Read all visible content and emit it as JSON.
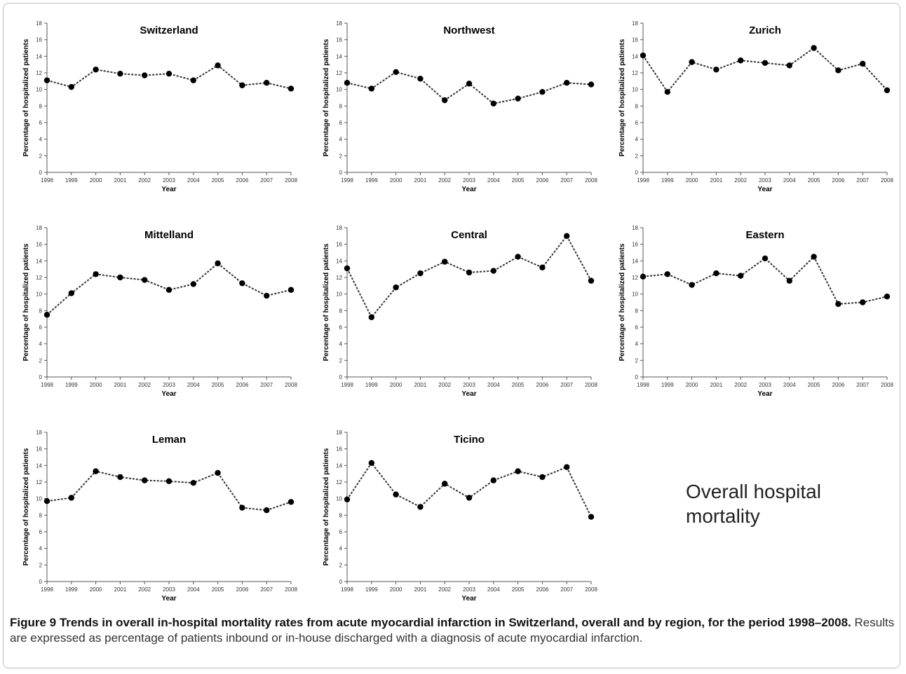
{
  "chart_data": [
    {
      "type": "line",
      "title": "Switzerland",
      "xlabel": "Year",
      "ylabel": "Percentage of hospitalized patients",
      "ylim": [
        0,
        18
      ],
      "yticks": [
        0,
        2,
        4,
        6,
        8,
        10,
        12,
        14,
        16,
        18
      ],
      "x": [
        "1998",
        "1999",
        "2000",
        "2001",
        "2002",
        "2003",
        "2004",
        "2005",
        "2006",
        "2007",
        "2008"
      ],
      "values": [
        11.1,
        10.3,
        12.4,
        11.9,
        11.7,
        11.9,
        11.1,
        12.9,
        10.5,
        10.8,
        10.1
      ]
    },
    {
      "type": "line",
      "title": "Northwest",
      "xlabel": "Year",
      "ylabel": "Percentage of hospitalized patients",
      "ylim": [
        0,
        18
      ],
      "yticks": [
        0,
        2,
        4,
        6,
        8,
        10,
        12,
        14,
        16,
        18
      ],
      "x": [
        "1998",
        "1999",
        "2000",
        "2001",
        "2002",
        "2003",
        "2004",
        "2005",
        "2006",
        "2007",
        "2008"
      ],
      "values": [
        10.8,
        10.1,
        12.1,
        11.3,
        8.7,
        10.7,
        8.3,
        8.9,
        9.7,
        10.8,
        10.6
      ]
    },
    {
      "type": "line",
      "title": "Zurich",
      "xlabel": "Year",
      "ylabel": "Percentage of hospitalized patients",
      "ylim": [
        0,
        18
      ],
      "yticks": [
        0,
        2,
        4,
        6,
        8,
        10,
        12,
        14,
        16,
        18
      ],
      "x": [
        "1998",
        "1999",
        "2000",
        "2001",
        "2002",
        "2003",
        "2004",
        "2005",
        "2006",
        "2007",
        "2008"
      ],
      "values": [
        14.1,
        9.7,
        13.3,
        12.4,
        13.5,
        13.2,
        12.9,
        15.0,
        12.3,
        13.1,
        9.9
      ]
    },
    {
      "type": "line",
      "title": "Mittelland",
      "xlabel": "Year",
      "ylabel": "Percentage of hospitalized patients",
      "ylim": [
        0,
        18
      ],
      "yticks": [
        0,
        2,
        4,
        6,
        8,
        10,
        12,
        14,
        16,
        18
      ],
      "x": [
        "1998",
        "1999",
        "2000",
        "2001",
        "2002",
        "2003",
        "2004",
        "2005",
        "2006",
        "2007",
        "2008"
      ],
      "values": [
        7.5,
        10.1,
        12.4,
        12.0,
        11.7,
        10.5,
        11.2,
        13.7,
        11.3,
        9.8,
        10.5
      ]
    },
    {
      "type": "line",
      "title": "Central",
      "xlabel": "Year",
      "ylabel": "Percentage of hospitalized patients",
      "ylim": [
        0,
        18
      ],
      "yticks": [
        0,
        2,
        4,
        6,
        8,
        10,
        12,
        14,
        16,
        18
      ],
      "x": [
        "1998",
        "1999",
        "2000",
        "2001",
        "2002",
        "2003",
        "2004",
        "2005",
        "2006",
        "2007",
        "2008"
      ],
      "values": [
        13.1,
        7.2,
        10.8,
        12.5,
        13.9,
        12.6,
        12.8,
        14.5,
        13.2,
        17.0,
        11.6
      ]
    },
    {
      "type": "line",
      "title": "Eastern",
      "xlabel": "Year",
      "ylabel": "Percentage of hospitalized patients",
      "ylim": [
        0,
        18
      ],
      "yticks": [
        0,
        2,
        4,
        6,
        8,
        10,
        12,
        14,
        16,
        18
      ],
      "x": [
        "1998",
        "1999",
        "2000",
        "2001",
        "2002",
        "2003",
        "2004",
        "2005",
        "2006",
        "2007",
        "2008"
      ],
      "values": [
        12.1,
        12.4,
        11.1,
        12.5,
        12.2,
        14.3,
        11.6,
        14.5,
        8.8,
        9.0,
        9.7
      ]
    },
    {
      "type": "line",
      "title": "Leman",
      "xlabel": "Year",
      "ylabel": "Percentage of hospitalized patients",
      "ylim": [
        0,
        18
      ],
      "yticks": [
        0,
        2,
        4,
        6,
        8,
        10,
        12,
        14,
        16,
        18
      ],
      "x": [
        "1998",
        "1999",
        "2000",
        "2001",
        "2002",
        "2003",
        "2004",
        "2005",
        "2006",
        "2007",
        "2008"
      ],
      "values": [
        9.7,
        10.1,
        13.3,
        12.6,
        12.2,
        12.1,
        11.9,
        13.1,
        8.9,
        8.6,
        9.6
      ]
    },
    {
      "type": "line",
      "title": "Ticino",
      "xlabel": "Year",
      "ylabel": "Percentage of hospitalized patients",
      "ylim": [
        0,
        18
      ],
      "yticks": [
        0,
        2,
        4,
        6,
        8,
        10,
        12,
        14,
        16,
        18
      ],
      "x": [
        "1998",
        "1999",
        "2000",
        "2001",
        "2002",
        "2003",
        "2004",
        "2005",
        "2006",
        "2007",
        "2008"
      ],
      "values": [
        9.9,
        14.3,
        10.5,
        9.0,
        11.8,
        10.1,
        12.2,
        13.3,
        12.6,
        13.8,
        7.8
      ]
    }
  ],
  "annotation": {
    "line1": "Overall hospital",
    "line2": "mortality"
  },
  "caption": {
    "bold": "Figure 9 Trends in overall in-hospital mortality rates from acute myocardial infarction in Switzerland, overall and by region, for the period 1998–2008.",
    "text": " Results are expressed as percentage of patients inbound or in-house discharged with a diagnosis of acute myocardial infarction."
  },
  "style": {
    "line_color": "#333333",
    "marker_color": "#000000",
    "axis_color": "#555555"
  }
}
